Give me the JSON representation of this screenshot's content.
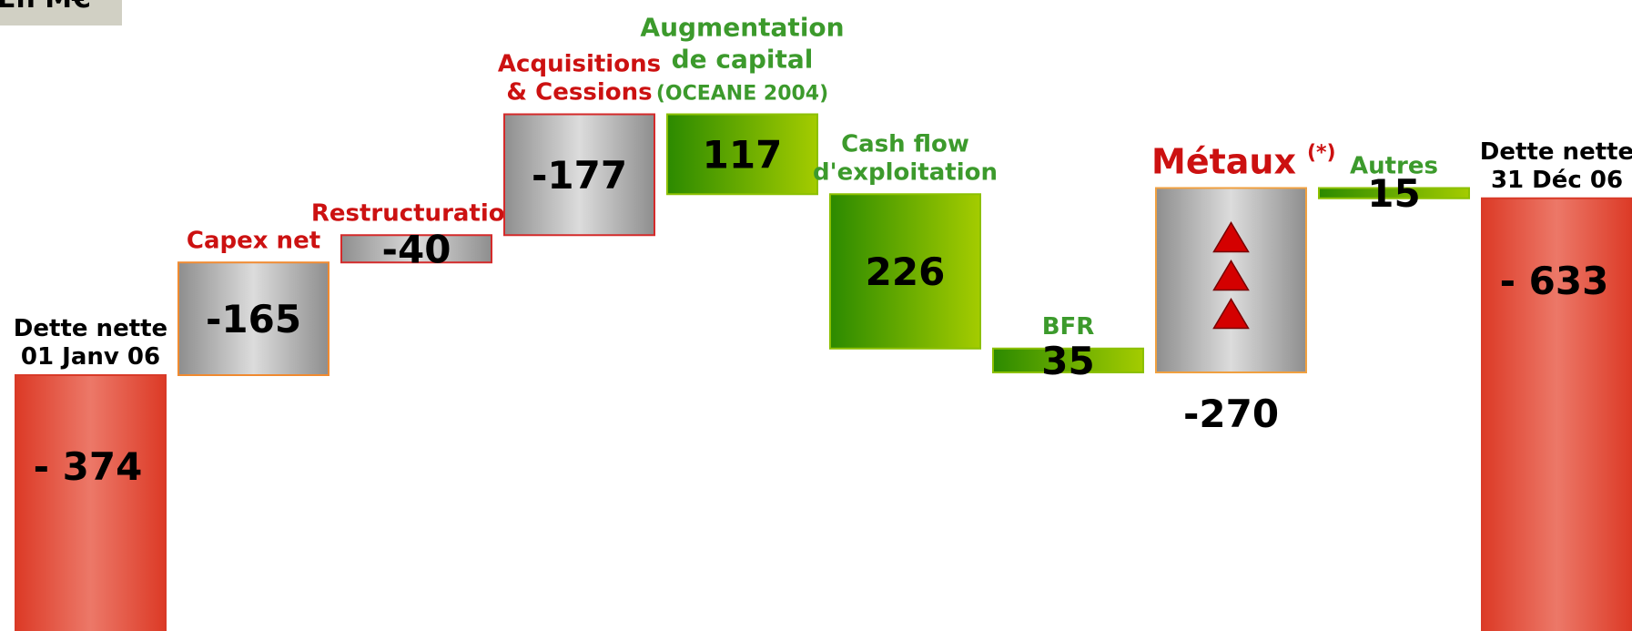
{
  "chart_data": {
    "type": "waterfall",
    "title": "En M€",
    "categories": [
      [
        "Dette nette",
        "01 Janv 06"
      ],
      [
        "Capex net"
      ],
      [
        "Restructuration"
      ],
      [
        "Acquisitions",
        "& Cessions"
      ],
      [
        "Augmentation",
        "de capital",
        "(OCEANE 2004)"
      ],
      [
        "Cash flow",
        "d'exploitation"
      ],
      [
        "BFR"
      ],
      [
        "Métaux"
      ],
      [
        "Autres"
      ],
      [
        "Dette nette",
        "31 Déc 06"
      ]
    ],
    "values": [
      -374,
      -165,
      -40,
      -177,
      117,
      226,
      35,
      -270,
      15,
      -633
    ],
    "value_labels": [
      "- 374",
      "-165",
      "-40",
      "-177",
      "117",
      "226",
      "35",
      "-270",
      "15",
      "- 633"
    ],
    "annotation": "(*)",
    "colors": {
      "total": "url(#gRed)",
      "decrease": "url(#gGray)",
      "increase": "url(#gGreen)"
    },
    "edge_colors": [
      "#d83a28",
      "#f08a30",
      "#d42a2a",
      "#d42a2a",
      "#8cc000",
      "#8cc000",
      "#8cc000",
      "#f0a040",
      "#8cc000",
      "#d83a28"
    ],
    "label_colors": [
      "#000000",
      "#cc1111",
      "#cc1111",
      "#cc1111",
      "#3c9a2c",
      "#3c9a2c",
      "#3c9a2c",
      "#cc1111",
      "#3c9a2c",
      "#000000"
    ]
  }
}
